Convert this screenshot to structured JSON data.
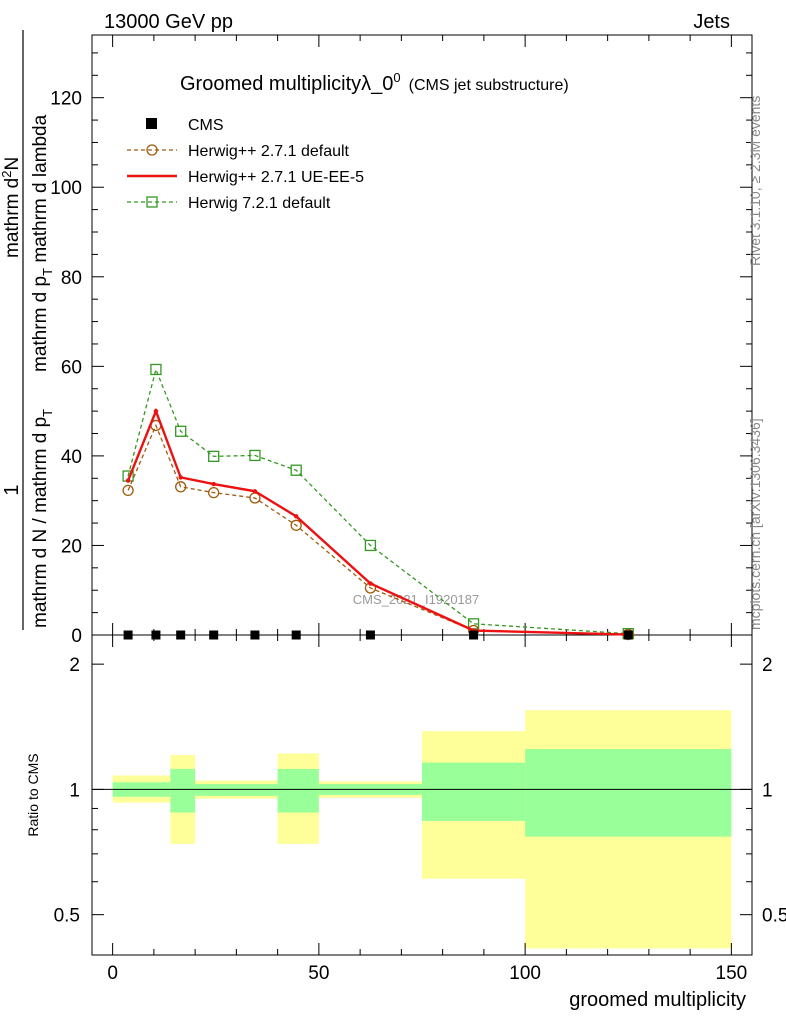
{
  "header": {
    "left": "13000 GeV pp",
    "right": "Jets"
  },
  "title": {
    "main": "Groomed multiplicityλ_0",
    "sup": "0",
    "sub": "(CMS jet substructure)"
  },
  "side_labels": {
    "rivet": "Rivet 3.1.10, ≥ 2.3M events",
    "mcplots": "mcplots.cern.ch [arXiv:1306.3436]"
  },
  "watermark": "CMS_2021_I1920187",
  "ylabel": {
    "one": "1",
    "den": "mathrm d N / mathrm d p",
    "den_sub": "T",
    "num_line1": "mathrm d",
    "num_line1_sup": "2",
    "num_line1_tail": "N",
    "num_line2a": "mathrm d p",
    "num_line2a_sub": "T",
    "num_line2b": " mathrm d lambda"
  },
  "ratio_ylabel": "Ratio to CMS",
  "xlabel": "groomed multiplicity",
  "colors": {
    "cms": "#000000",
    "h271def": "#a05a0a",
    "h271ue": "#ee1111",
    "h721": "#339922",
    "band_outer": "#ffff99",
    "band_inner": "#99ff99"
  },
  "chart_data": [
    {
      "type": "line",
      "panel": "main",
      "title": "Groomed multiplicityλ_0^0 (CMS jet substructure)",
      "xlim": [
        -5,
        155
      ],
      "ylim": [
        0,
        134
      ],
      "yticks": [
        0,
        20,
        40,
        60,
        80,
        100,
        120
      ],
      "xlabel": "groomed multiplicity",
      "legend": [
        {
          "label": "CMS",
          "series": "cms"
        },
        {
          "label": "Herwig++ 2.7.1 default",
          "series": "h271def"
        },
        {
          "label": "Herwig++ 2.7.1 UE-EE-5",
          "series": "h271ue"
        },
        {
          "label": "Herwig 7.2.1 default",
          "series": "h721"
        }
      ],
      "series": [
        {
          "id": "cms",
          "name": "CMS",
          "x": [
            3.75,
            10.5,
            16.5,
            24.5,
            34.5,
            44.5,
            62.5,
            87.5,
            125
          ],
          "values": [
            0,
            0,
            0,
            0,
            0,
            0,
            0,
            0,
            0
          ]
        },
        {
          "id": "h271def",
          "name": "Herwig++ 2.7.1 default",
          "x": [
            3.75,
            10.5,
            16.5,
            24.5,
            34.5,
            44.5,
            62.5,
            87.5,
            125
          ],
          "values": [
            32.3,
            46.8,
            33.1,
            31.8,
            30.6,
            24.5,
            10.5,
            1.0,
            0.1
          ]
        },
        {
          "id": "h271ue",
          "name": "Herwig++ 2.7.1 UE-EE-5",
          "x": [
            3.75,
            10.5,
            16.5,
            24.5,
            34.5,
            44.5,
            62.5,
            87.5,
            125
          ],
          "values": [
            34.5,
            50.0,
            35.2,
            33.7,
            32.1,
            26.5,
            11.5,
            1.0,
            0.1
          ]
        },
        {
          "id": "h721",
          "name": "Herwig 7.2.1 default",
          "x": [
            3.75,
            10.5,
            16.5,
            24.5,
            34.5,
            44.5,
            62.5,
            87.5,
            125
          ],
          "values": [
            35.5,
            59.3,
            45.5,
            39.9,
            40.1,
            36.8,
            20.0,
            2.5,
            0.3
          ]
        }
      ]
    },
    {
      "type": "area",
      "panel": "ratio",
      "ylabel": "Ratio to CMS",
      "xlim": [
        -5,
        155
      ],
      "ylim": [
        0.4,
        2.35
      ],
      "yticks": [
        0.5,
        1,
        2
      ],
      "xticks": [
        0,
        50,
        100,
        150
      ],
      "reference": 1,
      "bins": [
        {
          "x0": 0,
          "x1": 14,
          "inner": [
            0.96,
            1.04
          ],
          "outer": [
            0.93,
            1.08
          ]
        },
        {
          "x0": 14,
          "x1": 20,
          "inner": [
            0.88,
            1.12
          ],
          "outer": [
            0.74,
            1.21
          ]
        },
        {
          "x0": 20,
          "x1": 40,
          "inner": [
            0.965,
            1.03
          ],
          "outer": [
            0.95,
            1.05
          ]
        },
        {
          "x0": 40,
          "x1": 50,
          "inner": [
            0.88,
            1.12
          ],
          "outer": [
            0.74,
            1.22
          ]
        },
        {
          "x0": 50,
          "x1": 75,
          "inner": [
            0.97,
            1.03
          ],
          "outer": [
            0.955,
            1.045
          ]
        },
        {
          "x0": 75,
          "x1": 100,
          "inner": [
            0.84,
            1.16
          ],
          "outer": [
            0.61,
            1.38
          ]
        },
        {
          "x0": 100,
          "x1": 150,
          "inner": [
            0.77,
            1.25
          ],
          "outer": [
            0.415,
            1.55
          ]
        }
      ]
    }
  ]
}
